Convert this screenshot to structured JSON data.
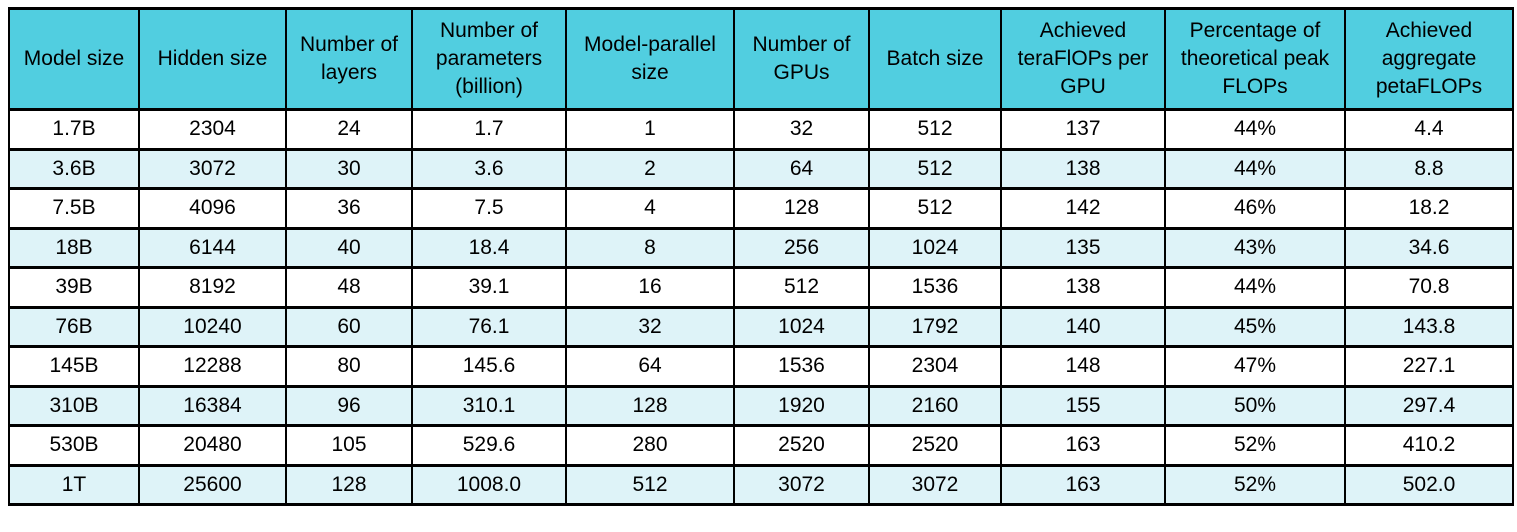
{
  "table": {
    "columns": [
      "Model size",
      "Hidden size",
      "Number of layers",
      "Number of parameters (billion)",
      "Model-parallel size",
      "Number of GPUs",
      "Batch size",
      "Achieved teraFlOPs per GPU",
      "Percentage of theoretical peak FLOPs",
      "Achieved aggregate petaFLOPs"
    ],
    "rows": [
      [
        "1.7B",
        "2304",
        "24",
        "1.7",
        "1",
        "32",
        "512",
        "137",
        "44%",
        "4.4"
      ],
      [
        "3.6B",
        "3072",
        "30",
        "3.6",
        "2",
        "64",
        "512",
        "138",
        "44%",
        "8.8"
      ],
      [
        "7.5B",
        "4096",
        "36",
        "7.5",
        "4",
        "128",
        "512",
        "142",
        "46%",
        "18.2"
      ],
      [
        "18B",
        "6144",
        "40",
        "18.4",
        "8",
        "256",
        "1024",
        "135",
        "43%",
        "34.6"
      ],
      [
        "39B",
        "8192",
        "48",
        "39.1",
        "16",
        "512",
        "1536",
        "138",
        "44%",
        "70.8"
      ],
      [
        "76B",
        "10240",
        "60",
        "76.1",
        "32",
        "1024",
        "1792",
        "140",
        "45%",
        "143.8"
      ],
      [
        "145B",
        "12288",
        "80",
        "145.6",
        "64",
        "1536",
        "2304",
        "148",
        "47%",
        "227.1"
      ],
      [
        "310B",
        "16384",
        "96",
        "310.1",
        "128",
        "1920",
        "2160",
        "155",
        "50%",
        "297.4"
      ],
      [
        "530B",
        "20480",
        "105",
        "529.6",
        "280",
        "2520",
        "2520",
        "163",
        "52%",
        "410.2"
      ],
      [
        "1T",
        "25600",
        "128",
        "1008.0",
        "512",
        "3072",
        "3072",
        "163",
        "52%",
        "502.0"
      ]
    ]
  },
  "colors": {
    "header_bg": "#51cee0",
    "row_bg": "#ffffff",
    "row_alt_bg": "#def3f8",
    "border": "#000000",
    "text": "#000000"
  }
}
